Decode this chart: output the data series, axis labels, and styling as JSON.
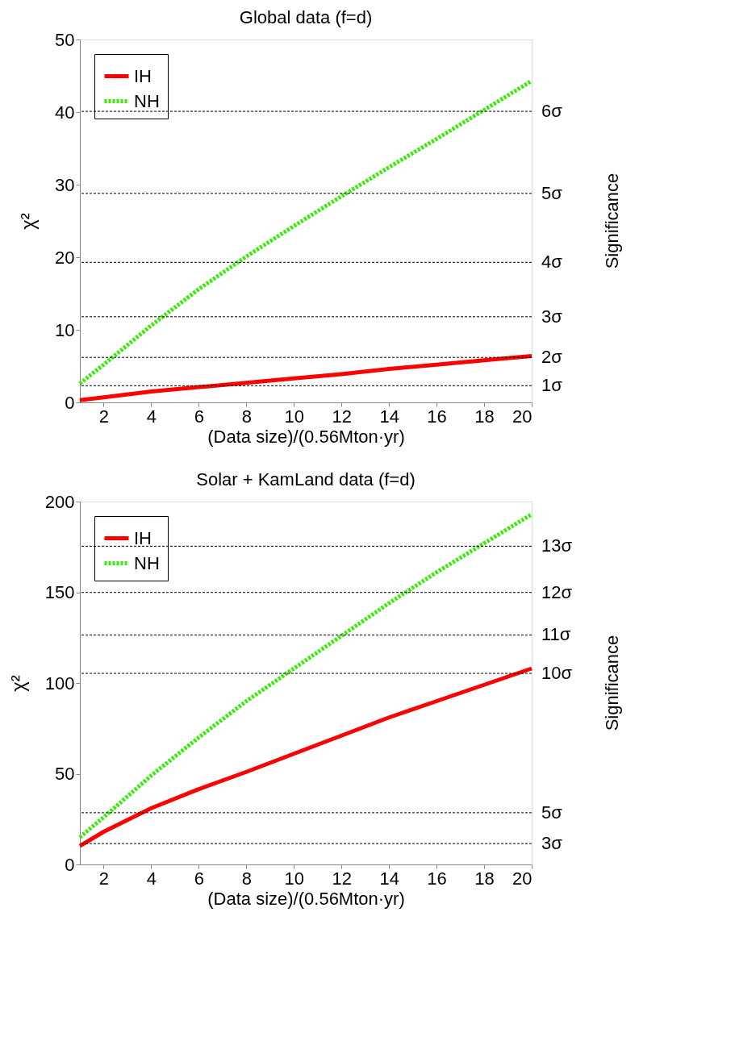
{
  "chart_data": [
    {
      "type": "line",
      "title": "Global data (f=d)",
      "xlabel": "(Data size)/(0.56Mton·yr)",
      "ylabel": "χ²",
      "y2label": "Significance",
      "x": [
        1,
        2,
        4,
        6,
        8,
        10,
        12,
        14,
        16,
        18,
        20
      ],
      "xlim": [
        1,
        20
      ],
      "xticks": [
        2,
        4,
        6,
        8,
        10,
        12,
        14,
        16,
        18,
        20
      ],
      "ylim": [
        0,
        50
      ],
      "yticks": [
        0,
        10,
        20,
        30,
        40,
        50
      ],
      "grid": false,
      "legend": "top left",
      "marker": "none",
      "series": [
        {
          "name": "IH",
          "color": "#ff0000",
          "line_style": "solid",
          "values": [
            0.3,
            0.7,
            1.5,
            2.1,
            2.7,
            3.3,
            3.9,
            4.6,
            5.2,
            5.8,
            6.4
          ]
        },
        {
          "name": "NH",
          "color": "#33ee00",
          "line_style": "dotted",
          "values": [
            2.6,
            5.2,
            10.6,
            15.6,
            20.1,
            24.3,
            28.4,
            32.4,
            36.3,
            40.3,
            44.3
          ]
        }
      ],
      "ref_lines": [
        {
          "axis": "y",
          "value": 2.3,
          "label": "1σ",
          "color": "#000000",
          "line_style": "dotted"
        },
        {
          "axis": "y",
          "value": 6.2,
          "label": "2σ",
          "color": "#000000",
          "line_style": "dotted"
        },
        {
          "axis": "y",
          "value": 11.8,
          "label": "3σ",
          "color": "#000000",
          "line_style": "dotted"
        },
        {
          "axis": "y",
          "value": 19.3,
          "label": "4σ",
          "color": "#000000",
          "line_style": "dotted"
        },
        {
          "axis": "y",
          "value": 28.8,
          "label": "5σ",
          "color": "#000000",
          "line_style": "dotted"
        },
        {
          "axis": "y",
          "value": 40.1,
          "label": "6σ",
          "color": "#000000",
          "line_style": "dotted"
        }
      ]
    },
    {
      "type": "line",
      "title": "Solar + KamLand data (f=d)",
      "xlabel": "(Data size)/(0.56Mton·yr)",
      "ylabel": "χ²",
      "y2label": "Significance",
      "x": [
        1,
        2,
        4,
        6,
        8,
        10,
        12,
        14,
        16,
        18,
        20
      ],
      "xlim": [
        1,
        20
      ],
      "xticks": [
        2,
        4,
        6,
        8,
        10,
        12,
        14,
        16,
        18,
        20
      ],
      "ylim": [
        0,
        200
      ],
      "yticks": [
        0,
        50,
        100,
        150,
        200
      ],
      "grid": false,
      "legend": "top left",
      "marker": "none",
      "series": [
        {
          "name": "IH",
          "color": "#ff0000",
          "line_style": "solid",
          "values": [
            10.2,
            18,
            31,
            41.5,
            51,
            61,
            71,
            81,
            90,
            99,
            108
          ]
        },
        {
          "name": "NH",
          "color": "#33ee00",
          "line_style": "dotted",
          "values": [
            15,
            26,
            49,
            70,
            90,
            108,
            126,
            144,
            161,
            177,
            193
          ]
        }
      ],
      "ref_lines": [
        {
          "axis": "y",
          "value": 11.5,
          "label": "3σ",
          "color": "#000000",
          "line_style": "dotted"
        },
        {
          "axis": "y",
          "value": 28.5,
          "label": "5σ",
          "color": "#000000",
          "line_style": "dotted"
        },
        {
          "axis": "y",
          "value": 105.3,
          "label": "10σ",
          "color": "#000000",
          "line_style": "dotted"
        },
        {
          "axis": "y",
          "value": 126.5,
          "label": "11σ",
          "color": "#000000",
          "line_style": "dotted"
        },
        {
          "axis": "y",
          "value": 149.9,
          "label": "12σ",
          "color": "#000000",
          "line_style": "dotted"
        },
        {
          "axis": "y",
          "value": 175.4,
          "label": "13σ",
          "color": "#000000",
          "line_style": "dotted"
        }
      ]
    }
  ]
}
